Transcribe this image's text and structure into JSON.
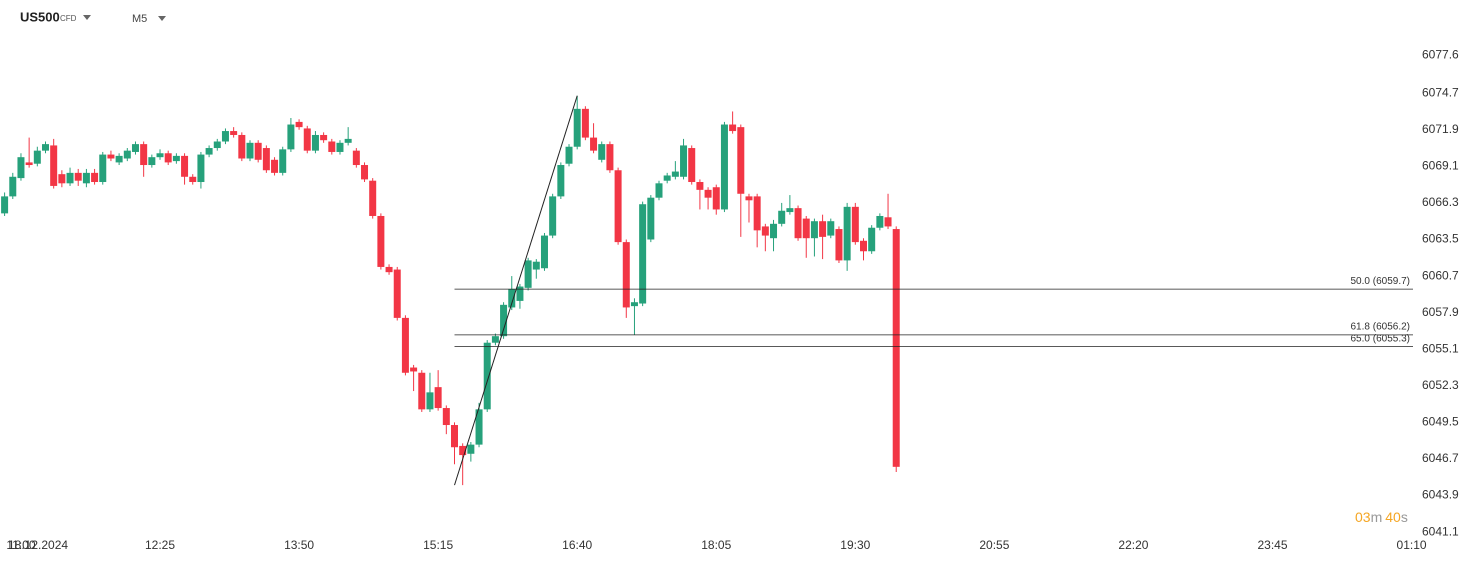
{
  "chart_data": {
    "type": "candlestick",
    "symbol": "US500",
    "instrument": "CFD",
    "timeframe": "M5",
    "categories": [
      "10:50",
      "10:55",
      "11:00",
      "11:05",
      "11:10",
      "11:15",
      "11:20",
      "11:25",
      "11:30",
      "11:35",
      "11:40",
      "11:45",
      "11:50",
      "11:55",
      "12:00",
      "12:05",
      "12:10",
      "12:15",
      "12:20",
      "12:25",
      "12:30",
      "12:35",
      "12:40",
      "12:45",
      "12:50",
      "12:55",
      "13:00",
      "13:05",
      "13:10",
      "13:15",
      "13:20",
      "13:25",
      "13:30",
      "13:35",
      "13:40",
      "13:45",
      "13:50",
      "13:55",
      "14:00",
      "14:05",
      "14:10",
      "14:15",
      "14:20",
      "14:25",
      "14:30",
      "14:35",
      "14:40",
      "14:45",
      "14:50",
      "14:55",
      "15:00",
      "15:05",
      "15:10",
      "15:15",
      "15:20",
      "15:25",
      "15:30",
      "15:35",
      "15:40",
      "15:45",
      "15:50",
      "15:55",
      "16:00",
      "16:05",
      "16:10",
      "16:15",
      "16:20",
      "16:25",
      "16:30",
      "16:35",
      "16:40",
      "16:45",
      "16:50",
      "16:55",
      "17:00",
      "17:05",
      "17:10",
      "17:15",
      "17:20",
      "17:25",
      "17:30",
      "17:35",
      "17:40",
      "17:45",
      "17:50",
      "17:55",
      "18:00",
      "18:05",
      "18:10",
      "18:15",
      "18:20",
      "18:25",
      "18:30",
      "18:35",
      "18:40",
      "18:45",
      "18:50",
      "18:55",
      "19:00",
      "19:05",
      "19:10",
      "19:15",
      "19:20",
      "19:25",
      "19:30",
      "19:35",
      "19:40",
      "19:45",
      "19:50",
      "19:55"
    ],
    "open": [
      6065.5,
      6066.8,
      6068.2,
      6069.4,
      6069.3,
      6070.3,
      6070.7,
      6068.5,
      6067.8,
      6068.6,
      6067.8,
      6068.6,
      6067.9,
      6070.0,
      6069.4,
      6069.7,
      6070.2,
      6070.8,
      6069.2,
      6069.8,
      6070.1,
      6069.5,
      6069.9,
      6068.3,
      6067.9,
      6070.0,
      6070.5,
      6071.0,
      6071.8,
      6071.5,
      6069.7,
      6070.9,
      6070.5,
      6069.6,
      6068.6,
      6070.4,
      6072.5,
      6072.0,
      6070.3,
      6071.5,
      6071.0,
      6070.2,
      6070.9,
      6070.3,
      6069.2,
      6068.0,
      6065.3,
      6061.4,
      6061.2,
      6057.5,
      6053.7,
      6053.3,
      6050.5,
      6052.2,
      6050.6,
      6049.3,
      6047.7,
      6047.1,
      6047.8,
      6050.5,
      6055.6,
      6056.1,
      6058.3,
      6058.8,
      6059.8,
      6061.2,
      6061.3,
      6063.8,
      6066.8,
      6069.3,
      6070.6,
      6073.5,
      6071.3,
      6069.6,
      6070.8,
      6068.8,
      6063.3,
      6058.4,
      6058.6,
      6063.5,
      6066.7,
      6068.0,
      6068.3,
      6068.3,
      6070.5,
      6067.9,
      6067.3,
      6067.5,
      6065.8,
      6072.3,
      6072.1,
      6066.8,
      6066.8,
      6064.5,
      6063.6,
      6064.7,
      6065.6,
      6065.9,
      6065.1,
      6063.6,
      6064.9,
      6063.8,
      6064.3,
      6061.9,
      6066.0,
      6063.4,
      6062.6,
      6064.4,
      6065.2,
      6064.3
    ],
    "high": [
      6067.1,
      6068.6,
      6070.1,
      6071.3,
      6070.6,
      6071.0,
      6071.2,
      6068.8,
      6069.0,
      6068.9,
      6068.9,
      6068.9,
      6070.2,
      6070.3,
      6070.1,
      6070.5,
      6071.0,
      6071.0,
      6070.0,
      6070.4,
      6070.3,
      6070.1,
      6070.1,
      6068.5,
      6070.2,
      6070.7,
      6071.2,
      6072.0,
      6072.1,
      6071.7,
      6071.1,
      6071.1,
      6070.7,
      6069.8,
      6070.6,
      6072.8,
      6072.7,
      6072.2,
      6071.8,
      6071.7,
      6071.2,
      6071.1,
      6072.1,
      6070.5,
      6069.4,
      6068.2,
      6065.5,
      6061.6,
      6061.4,
      6057.7,
      6053.9,
      6053.5,
      6053.3,
      6053.5,
      6050.8,
      6049.5,
      6047.9,
      6048.0,
      6051.0,
      6055.8,
      6056.3,
      6058.7,
      6060.7,
      6060.1,
      6062.1,
      6062.0,
      6064.0,
      6067.0,
      6069.4,
      6070.8,
      6074.5,
      6073.7,
      6072.4,
      6071.0,
      6071.0,
      6069.0,
      6063.5,
      6059.0,
      6066.4,
      6066.9,
      6068.0,
      6068.6,
      6069.5,
      6071.2,
      6070.7,
      6068.1,
      6067.5,
      6067.7,
      6072.5,
      6073.3,
      6072.3,
      6067.0,
      6067.0,
      6064.7,
      6065.0,
      6066.3,
      6066.9,
      6066.1,
      6065.3,
      6065.1,
      6065.4,
      6065.1,
      6064.5,
      6066.3,
      6066.3,
      6063.6,
      6064.6,
      6065.5,
      6067.0,
      6064.5
    ],
    "low": [
      6065.3,
      6066.6,
      6068.0,
      6069.0,
      6069.1,
      6070.1,
      6067.4,
      6067.5,
      6067.6,
      6067.6,
      6067.5,
      6067.7,
      6067.7,
      6069.5,
      6069.2,
      6069.5,
      6070.0,
      6068.3,
      6069.0,
      6069.6,
      6069.2,
      6069.3,
      6067.7,
      6067.7,
      6067.4,
      6069.8,
      6070.3,
      6070.8,
      6071.3,
      6069.5,
      6069.5,
      6069.4,
      6068.6,
      6068.4,
      6068.4,
      6070.2,
      6071.9,
      6070.1,
      6070.1,
      6070.9,
      6070.0,
      6070.0,
      6070.7,
      6069.0,
      6067.9,
      6065.1,
      6061.2,
      6060.8,
      6057.3,
      6053.1,
      6051.9,
      6050.3,
      6050.3,
      6050.4,
      6048.6,
      6046.3,
      6044.7,
      6046.5,
      6047.6,
      6050.3,
      6055.4,
      6055.9,
      6058.1,
      6058.2,
      6059.6,
      6060.5,
      6061.1,
      6063.6,
      6066.6,
      6069.1,
      6070.4,
      6071.1,
      6070.1,
      6069.4,
      6068.6,
      6063.1,
      6057.5,
      6056.2,
      6058.4,
      6063.3,
      6066.5,
      6067.8,
      6068.1,
      6068.1,
      6067.7,
      6065.8,
      6065.8,
      6065.4,
      6065.6,
      6071.6,
      6063.7,
      6064.8,
      6062.9,
      6062.6,
      6062.6,
      6064.5,
      6065.4,
      6063.4,
      6062.1,
      6062.2,
      6062.0,
      6063.6,
      6061.7,
      6061.1,
      6063.1,
      6061.9,
      6062.4,
      6064.2,
      6064.3,
      6045.7
    ],
    "close": [
      6066.8,
      6068.3,
      6069.8,
      6069.2,
      6070.3,
      6070.8,
      6067.6,
      6067.8,
      6068.6,
      6068.0,
      6068.6,
      6067.9,
      6070.0,
      6069.7,
      6069.9,
      6070.3,
      6070.8,
      6069.2,
      6069.8,
      6070.1,
      6069.4,
      6069.9,
      6068.3,
      6067.9,
      6070.0,
      6070.5,
      6071.0,
      6071.8,
      6071.5,
      6069.7,
      6070.9,
      6069.6,
      6068.8,
      6068.6,
      6070.4,
      6072.3,
      6072.1,
      6070.3,
      6071.5,
      6071.1,
      6070.2,
      6070.9,
      6071.2,
      6069.2,
      6068.1,
      6065.3,
      6061.4,
      6061.0,
      6057.5,
      6053.3,
      6053.4,
      6050.5,
      6051.8,
      6050.6,
      6049.3,
      6047.6,
      6047.0,
      6047.8,
      6050.5,
      6055.6,
      6056.1,
      6058.5,
      6059.7,
      6059.9,
      6061.9,
      6061.8,
      6063.8,
      6066.8,
      6069.2,
      6070.6,
      6073.5,
      6071.3,
      6070.3,
      6070.8,
      6068.8,
      6063.3,
      6058.3,
      6058.7,
      6066.2,
      6066.7,
      6067.8,
      6068.4,
      6068.7,
      6070.7,
      6067.9,
      6067.3,
      6066.7,
      6065.8,
      6072.3,
      6071.8,
      6067.0,
      6066.5,
      6064.2,
      6063.8,
      6064.7,
      6065.7,
      6065.9,
      6063.6,
      6063.6,
      6064.9,
      6063.7,
      6064.9,
      6061.9,
      6066.0,
      6063.3,
      6062.6,
      6064.4,
      6065.3,
      6064.5,
      6046.1
    ],
    "up_color": "#26a17b",
    "down_color": "#f23645",
    "ylim": [
      6040.5,
      6080.3
    ],
    "yticks": [
      6077.6,
      6074.7,
      6071.9,
      6069.1,
      6066.3,
      6063.5,
      6060.7,
      6057.9,
      6055.1,
      6052.3,
      6049.5,
      6046.7,
      6043.9,
      6041.1
    ],
    "date_label": "18.12.2024",
    "xticks": [
      "11:00",
      "12:25",
      "13:50",
      "15:15",
      "16:40",
      "18:05",
      "19:30",
      "20:55",
      "22:20",
      "23:45",
      "01:10"
    ],
    "trendline": {
      "x": [
        "15:25",
        "16:40"
      ],
      "y": [
        6044.7,
        6074.5
      ]
    },
    "fib_levels": [
      {
        "label": "50.0 (6059.7)",
        "value": 6059.7
      },
      {
        "label": "61.8 (6056.2)",
        "value": 6056.2
      },
      {
        "label": "65.0 (6055.3)",
        "value": 6055.3
      }
    ],
    "countdown": {
      "minutes": "03",
      "minutes_unit": "m",
      "seconds": "40",
      "seconds_unit": "s"
    }
  }
}
